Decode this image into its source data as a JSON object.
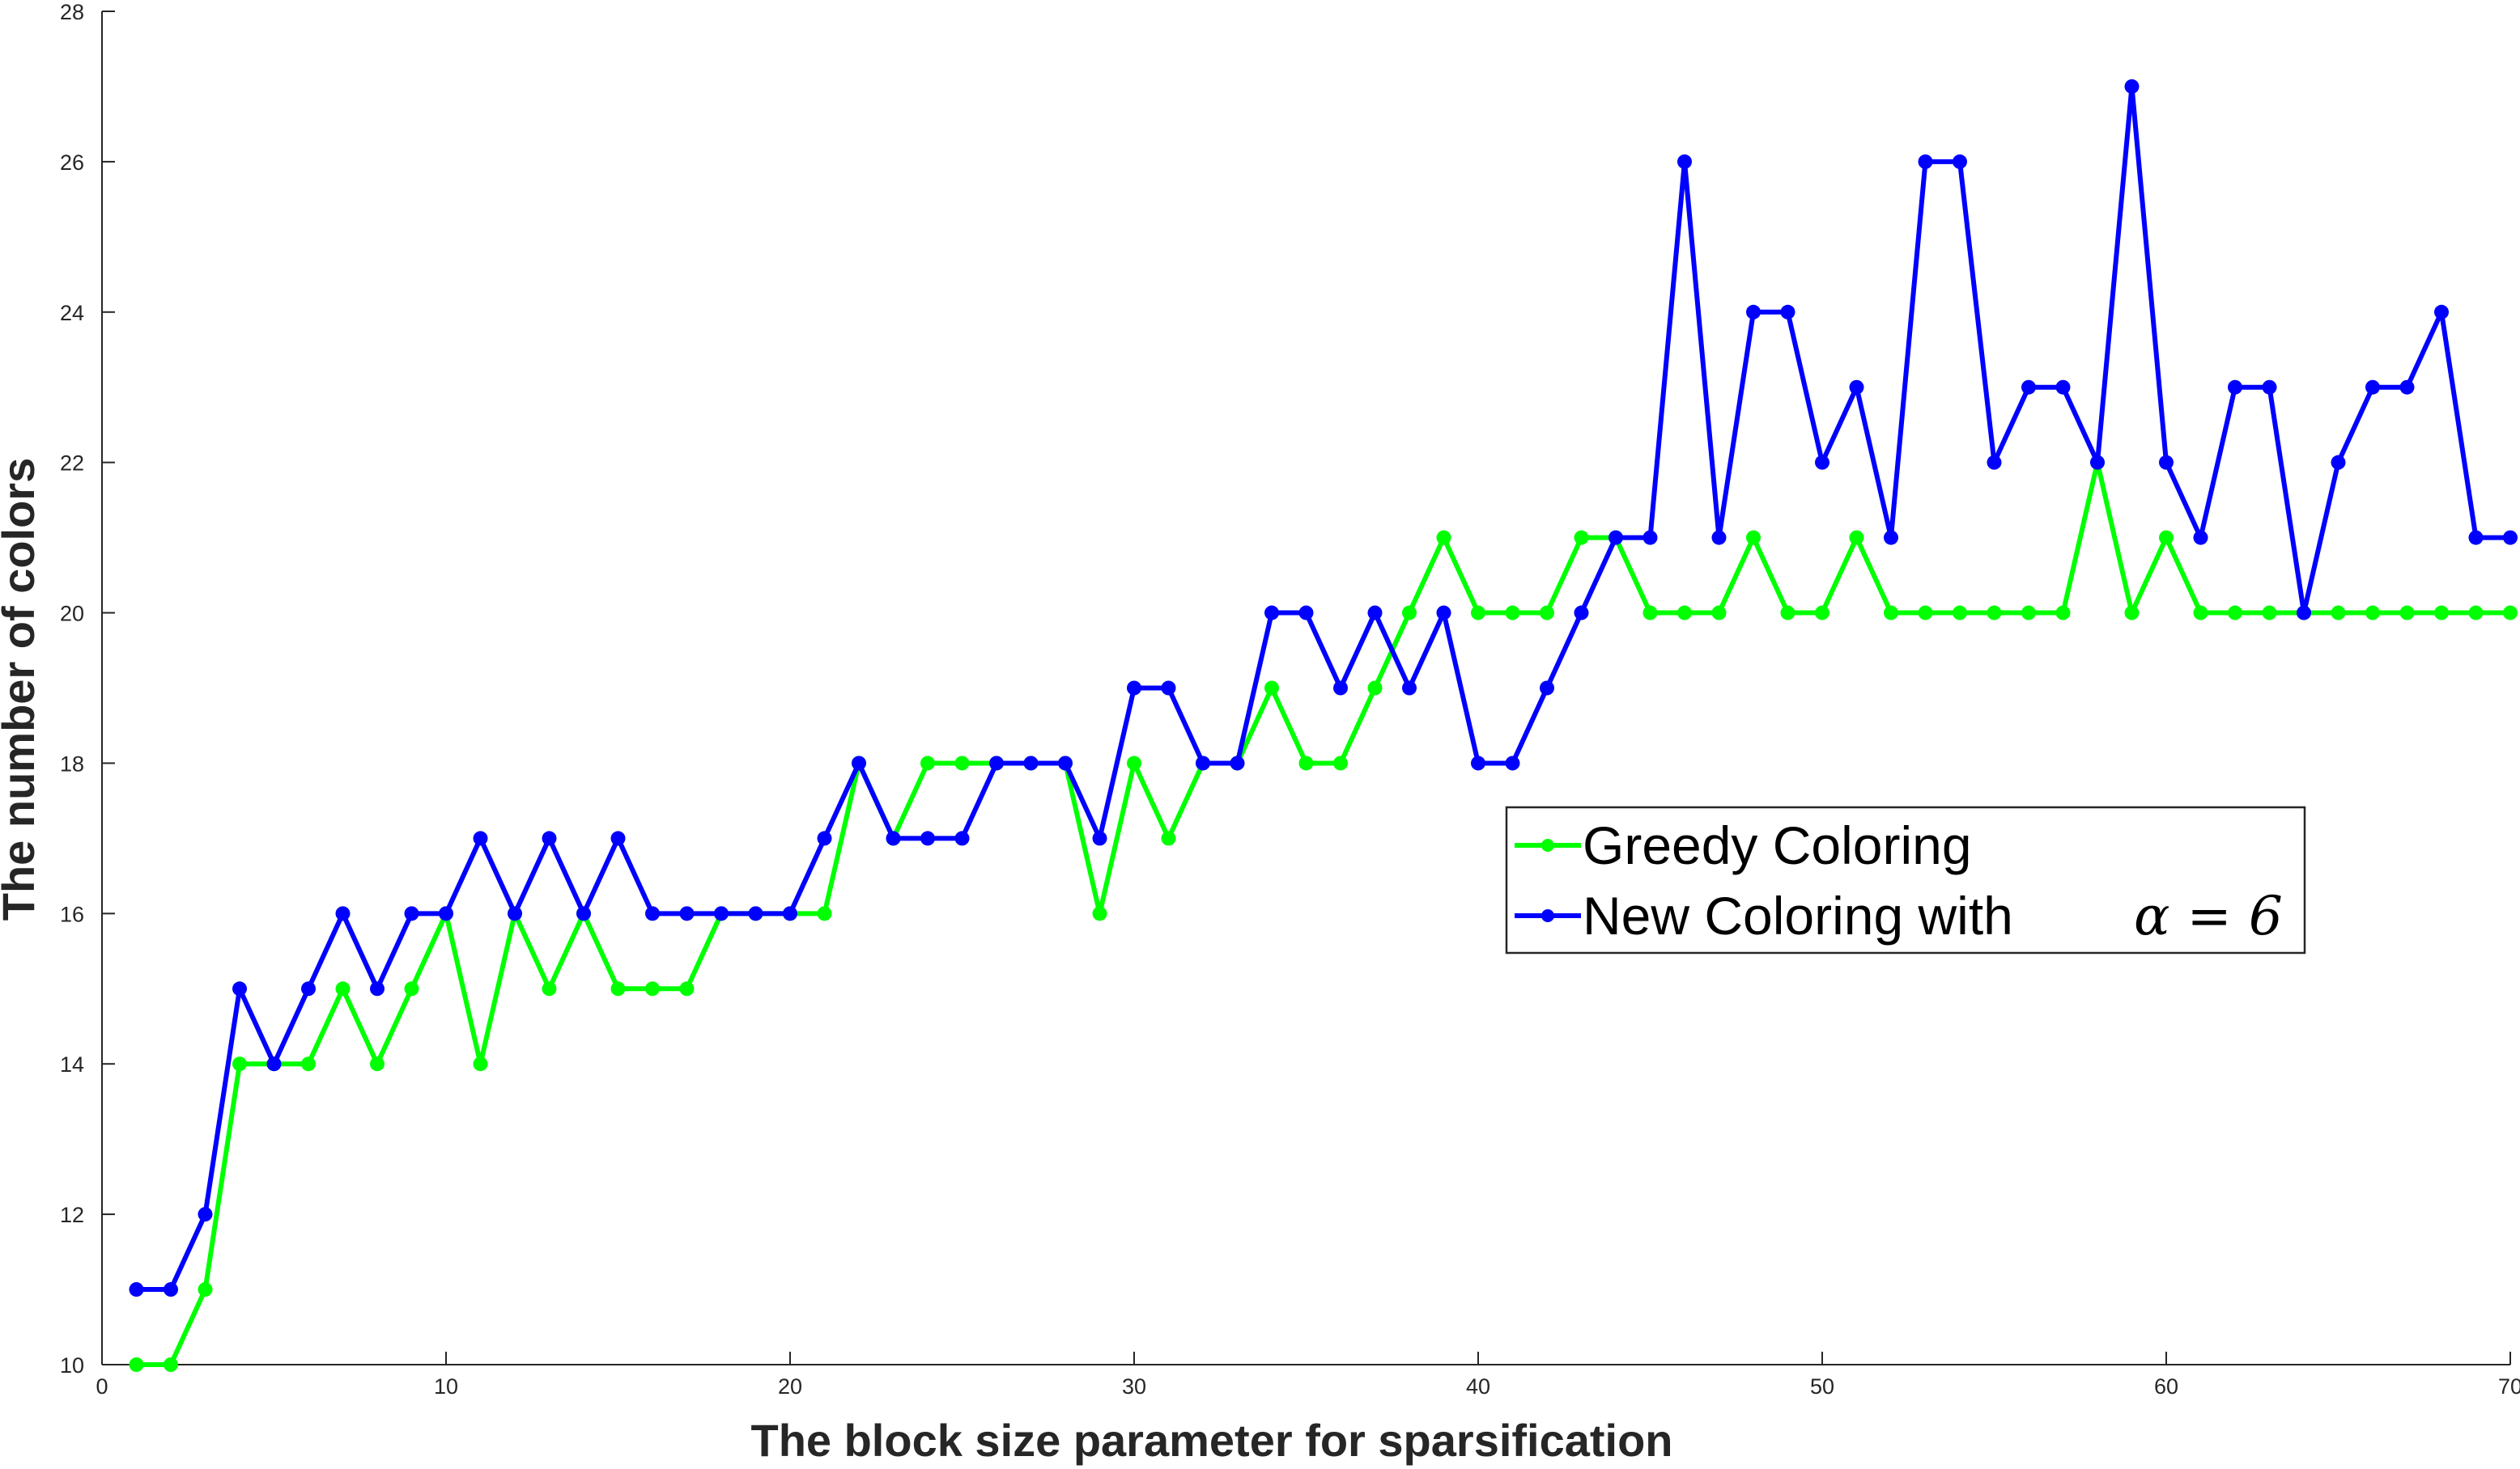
{
  "chart_data": {
    "type": "line",
    "title": "",
    "xlabel": "The block size parameter for sparsification",
    "ylabel": "The number of colors",
    "xlim": [
      0,
      70
    ],
    "ylim": [
      10,
      28
    ],
    "xticks": [
      0,
      10,
      20,
      30,
      40,
      50,
      60,
      70
    ],
    "yticks": [
      10,
      12,
      14,
      16,
      18,
      20,
      22,
      24,
      26,
      28
    ],
    "grid": false,
    "legend_position": "center-right",
    "x": [
      1,
      2,
      3,
      4,
      5,
      6,
      7,
      8,
      9,
      10,
      11,
      12,
      13,
      14,
      15,
      16,
      17,
      18,
      19,
      20,
      21,
      22,
      23,
      24,
      25,
      26,
      27,
      28,
      29,
      30,
      31,
      32,
      33,
      34,
      35,
      36,
      37,
      38,
      39,
      40,
      41,
      42,
      43,
      44,
      45,
      46,
      47,
      48,
      49,
      50,
      51,
      52,
      53,
      54,
      55,
      56,
      57,
      58,
      59,
      60,
      61,
      62,
      63,
      64,
      65,
      66,
      67,
      68,
      69,
      70
    ],
    "series": [
      {
        "name": "Greedy Coloring",
        "color": "#00ff00",
        "values": [
          10,
          10,
          11,
          14,
          14,
          14,
          15,
          14,
          15,
          16,
          14,
          16,
          15,
          16,
          15,
          15,
          15,
          16,
          16,
          16,
          16,
          18,
          17,
          18,
          18,
          18,
          18,
          18,
          16,
          18,
          17,
          18,
          18,
          19,
          18,
          18,
          19,
          20,
          21,
          20,
          20,
          20,
          21,
          21,
          20,
          20,
          20,
          21,
          20,
          20,
          21,
          20,
          20,
          20,
          20,
          20,
          20,
          22,
          20,
          21,
          20,
          20,
          20,
          20,
          20,
          20,
          20,
          20,
          20,
          20
        ]
      },
      {
        "name": "New Coloring with",
        "name_math": "α = 6",
        "color": "#0000ff",
        "values": [
          11,
          11,
          12,
          15,
          14,
          15,
          16,
          15,
          16,
          16,
          17,
          16,
          17,
          16,
          17,
          16,
          16,
          16,
          16,
          16,
          17,
          18,
          17,
          17,
          17,
          18,
          18,
          18,
          17,
          19,
          19,
          18,
          18,
          20,
          20,
          19,
          20,
          19,
          20,
          18,
          18,
          19,
          20,
          21,
          21,
          26,
          21,
          24,
          24,
          22,
          23,
          21,
          26,
          26,
          22,
          23,
          23,
          22,
          27,
          22,
          21,
          23,
          23,
          20,
          22,
          23,
          23,
          24,
          21,
          21
        ]
      }
    ]
  }
}
